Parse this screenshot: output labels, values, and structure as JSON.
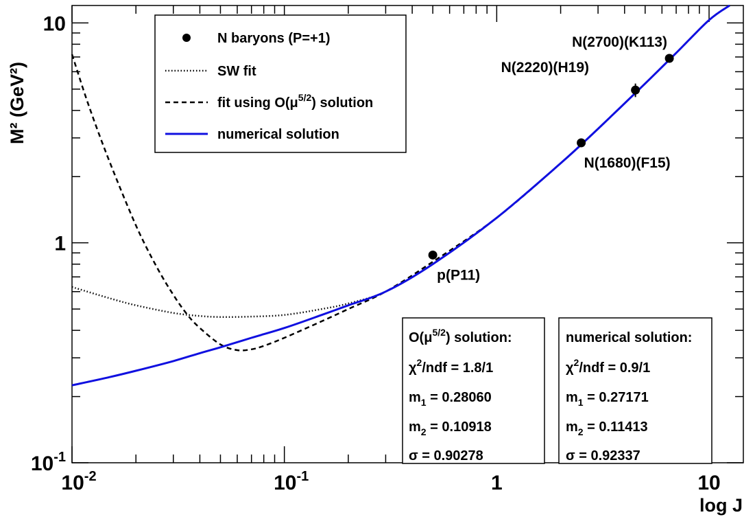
{
  "chart_data": {
    "type": "line",
    "xscale": "log",
    "yscale": "log",
    "xlim": [
      0.01,
      14.5
    ],
    "ylim": [
      0.1,
      12
    ],
    "xlabel": "log J",
    "ylabel": "M² (GeV²)",
    "x_ticks": [
      {
        "value": 0.01,
        "base": "10",
        "exp": "-2"
      },
      {
        "value": 0.1,
        "base": "10",
        "exp": "-1"
      },
      {
        "value": 1,
        "base": "1",
        "exp": ""
      },
      {
        "value": 10,
        "base": "10",
        "exp": ""
      }
    ],
    "y_ticks": [
      {
        "value": 0.1,
        "base": "10",
        "exp": "-1"
      },
      {
        "value": 1,
        "base": "1",
        "exp": ""
      },
      {
        "value": 10,
        "base": "10",
        "exp": ""
      }
    ],
    "legend": {
      "position": "top-left",
      "entries": [
        {
          "label": "N baryons (P=+1)",
          "style": "marker"
        },
        {
          "label": "SW fit",
          "style": "dotted"
        },
        {
          "label": "fit using O(μ5/2) solution",
          "label_pre": "fit using O(",
          "label_sup_base": "μ",
          "label_sup": "5/2",
          "label_post": ") solution",
          "style": "dashed"
        },
        {
          "label": "numerical solution",
          "style": "solid-blue"
        }
      ]
    },
    "series": [
      {
        "name": "N baryons (P=+1)",
        "style": "marker",
        "points": [
          {
            "x": 0.5,
            "y": 0.88,
            "err": 0
          },
          {
            "x": 2.5,
            "y": 2.85,
            "err": 0
          },
          {
            "x": 4.5,
            "y": 4.95,
            "err": 0.35
          },
          {
            "x": 6.5,
            "y": 6.9,
            "err": 0
          }
        ],
        "point_labels": [
          "p(P11)",
          "N(1680)(F15)",
          "N(2220)(H19)",
          "N(2700)(K113)"
        ]
      },
      {
        "name": "SW fit",
        "style": "dotted",
        "x": [
          0.01,
          0.015,
          0.02,
          0.03,
          0.04,
          0.05,
          0.07,
          0.1,
          0.15,
          0.2,
          0.3,
          0.5,
          1,
          2,
          3,
          5,
          7,
          10,
          12.5
        ],
        "y": [
          0.63,
          0.56,
          0.52,
          0.48,
          0.465,
          0.46,
          0.462,
          0.47,
          0.5,
          0.53,
          0.6,
          0.8,
          1.3,
          2.3,
          3.3,
          5.3,
          7.3,
          10.3,
          12
        ]
      },
      {
        "name": "fit using O(μ5/2) solution",
        "style": "dashed",
        "x": [
          0.01,
          0.012,
          0.015,
          0.02,
          0.025,
          0.03,
          0.035,
          0.04,
          0.05,
          0.06,
          0.07,
          0.08,
          0.1,
          0.15,
          0.2,
          0.3,
          0.5,
          1,
          2,
          3,
          5,
          7,
          10,
          12.5
        ],
        "y": [
          7.2,
          4.2,
          2.35,
          1.2,
          0.78,
          0.58,
          0.47,
          0.41,
          0.345,
          0.325,
          0.328,
          0.34,
          0.37,
          0.44,
          0.5,
          0.6,
          0.82,
          1.3,
          2.3,
          3.3,
          5.3,
          7.3,
          10.3,
          12
        ]
      },
      {
        "name": "numerical solution",
        "style": "solid-blue",
        "x": [
          0.01,
          0.015,
          0.02,
          0.03,
          0.04,
          0.05,
          0.07,
          0.1,
          0.15,
          0.2,
          0.3,
          0.5,
          1,
          2,
          3,
          5,
          7,
          10,
          12.5
        ],
        "y": [
          0.225,
          0.245,
          0.262,
          0.29,
          0.315,
          0.335,
          0.37,
          0.41,
          0.47,
          0.52,
          0.6,
          0.8,
          1.3,
          2.3,
          3.3,
          5.3,
          7.3,
          10.3,
          12
        ]
      }
    ],
    "stat_boxes": [
      {
        "title_pre": "O(",
        "title_sym": "μ",
        "title_sup": "5/2",
        "title_post": ") solution:",
        "chi2_sym": "χ",
        "chi2_rest": "/ndf = 1.8/1",
        "m1": "= 0.28060",
        "m2": "= 0.10918",
        "sigma_sym": "σ",
        "sigma": " = 0.90278"
      },
      {
        "title": "numerical solution:",
        "chi2_sym": "χ",
        "chi2_rest": "/ndf = 0.9/1",
        "m1": "= 0.27171",
        "m2": "= 0.11413",
        "sigma_sym": "σ",
        "sigma": " = 0.92337"
      }
    ],
    "colors": {
      "numerical": "#1010e0",
      "axes": "#000000",
      "markers": "#000000"
    }
  }
}
